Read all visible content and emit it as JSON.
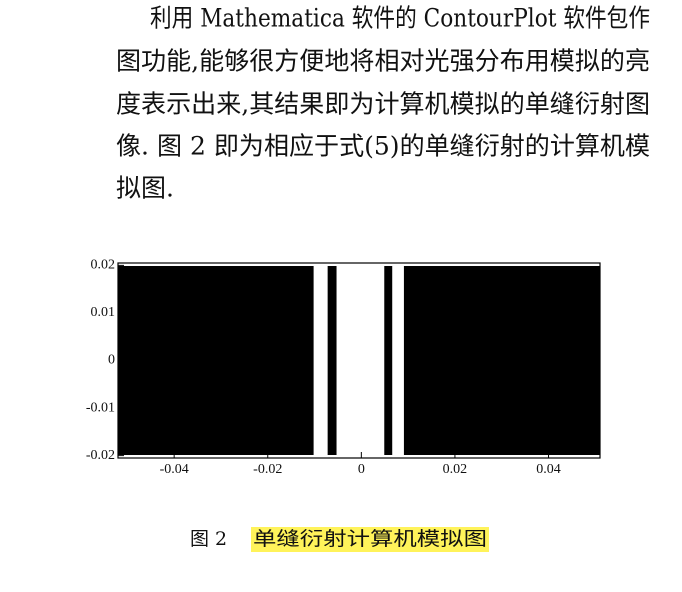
{
  "paragraph": {
    "lines": [
      "利用 Mathematica 软件的 ContourPlot 软件包作",
      "图功能,能够很方便地将相对光强分布用模拟的亮",
      "度表示出来,其结果即为计算机模拟的单缝衍射图",
      "像. 图 2 即为相应于式(5)的单缝衍射的计算机模",
      "拟图."
    ]
  },
  "chart_data": {
    "type": "contour",
    "xlim": [
      -0.052,
      0.051
    ],
    "ylim": [
      -0.0205,
      0.0205
    ],
    "xticks": [
      -0.04,
      -0.02,
      0,
      0.02,
      0.04
    ],
    "yticks": [
      0.02,
      0.01,
      0,
      -0.01,
      -0.02
    ],
    "dark_bands": [
      [
        -0.052,
        -0.0102
      ],
      [
        -0.0072,
        -0.0053
      ],
      [
        0.0049,
        0.0066
      ],
      [
        0.0091,
        0.051
      ]
    ],
    "color": "#000000"
  },
  "caption": {
    "label": "图 2",
    "text": "单缝衍射计算机模拟图"
  }
}
